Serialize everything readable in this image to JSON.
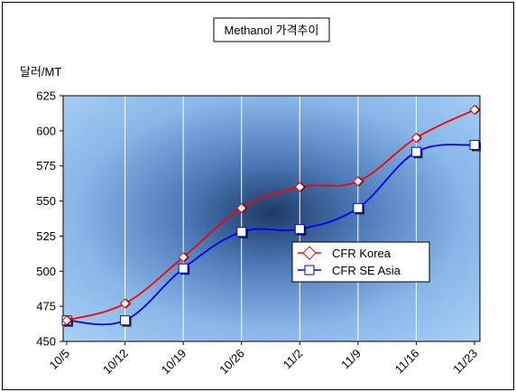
{
  "chart_data": {
    "type": "line",
    "title": "Methanol 가격추이",
    "ylabel": "달러/MT",
    "xlabel": "",
    "categories": [
      "10/5",
      "10/12",
      "10/19",
      "10/26",
      "11/2",
      "11/9",
      "11/16",
      "11/23"
    ],
    "ylim": [
      450,
      625
    ],
    "yticks": [
      450,
      475,
      500,
      525,
      550,
      575,
      600,
      625
    ],
    "grid": "vertical lines at categories",
    "legend_position": "center-right",
    "series": [
      {
        "name": "CFR Korea",
        "values": [
          465,
          477,
          510,
          545,
          560,
          564,
          595,
          615
        ],
        "color": "#ff0000",
        "marker": "diamond"
      },
      {
        "name": "CFR SE Asia",
        "values": [
          465,
          465,
          502,
          528,
          530,
          545,
          585,
          590
        ],
        "color": "#0000ff",
        "marker": "square"
      }
    ]
  }
}
